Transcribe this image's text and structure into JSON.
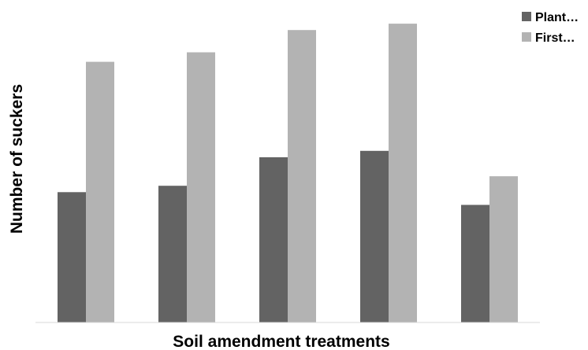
{
  "chart_data": {
    "type": "bar",
    "title": "",
    "xlabel": "Soil amendment treatments",
    "ylabel": "Number of suckers",
    "categories": [
      "",
      "",
      "",
      "",
      ""
    ],
    "series": [
      {
        "name": "Plant…",
        "color": "#636363",
        "values": [
          4.1,
          4.3,
          5.2,
          5.4,
          3.7
        ]
      },
      {
        "name": "First…",
        "color": "#b3b3b3",
        "values": [
          8.2,
          8.5,
          9.2,
          9.4,
          4.6
        ]
      }
    ],
    "ylim": [
      0,
      9.7
    ],
    "grid": false,
    "legend_position": "top-right"
  }
}
